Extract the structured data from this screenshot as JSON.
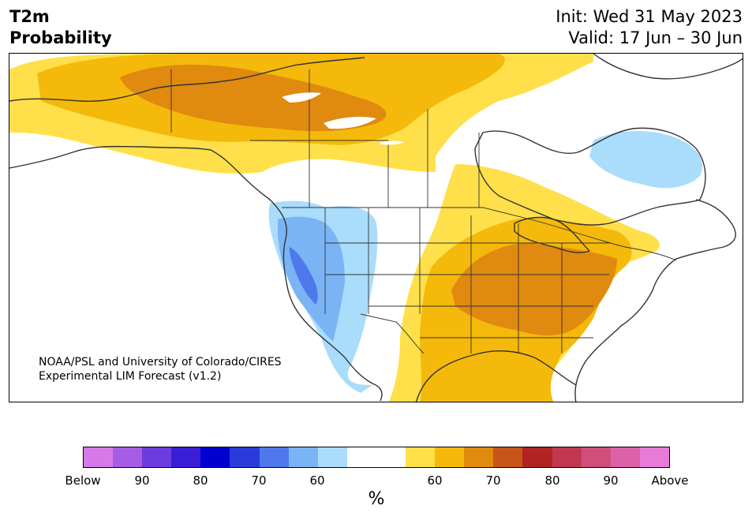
{
  "title": {
    "line1": "T2m",
    "line2": "Probability"
  },
  "init": "Init: Wed 31 May 2023",
  "valid": "Valid: 17 Jun – 30 Jun",
  "credit": {
    "line1": "NOAA/PSL and University of Colorado/CIRES",
    "line2": "Experimental LIM Forecast (v1.2)"
  },
  "colorbar": {
    "colors": [
      "#d57ae8",
      "#a55de5",
      "#6d3cdd",
      "#3a1ed6",
      "#0000cf",
      "#2a3bda",
      "#4e78ec",
      "#7ab4f4",
      "#aadcfb",
      "#ffffff",
      "#ffffff",
      "#ffe04a",
      "#f4b90a",
      "#e08a0f",
      "#c75419",
      "#b02424",
      "#c23850",
      "#cf4f7a",
      "#dc62a8",
      "#e87ad8"
    ],
    "labels": [
      "Below",
      "90",
      "80",
      "70",
      "60",
      "60",
      "70",
      "80",
      "90",
      "Above"
    ],
    "units": "%"
  },
  "legend_colors": {
    "below_60": "#aadcfb",
    "below_70": "#7ab4f4",
    "below_80": "#4e78ec",
    "above_60": "#ffe04a",
    "above_70": "#f4b90a",
    "above_80": "#e08a0f",
    "above_90": "#c75419"
  }
}
